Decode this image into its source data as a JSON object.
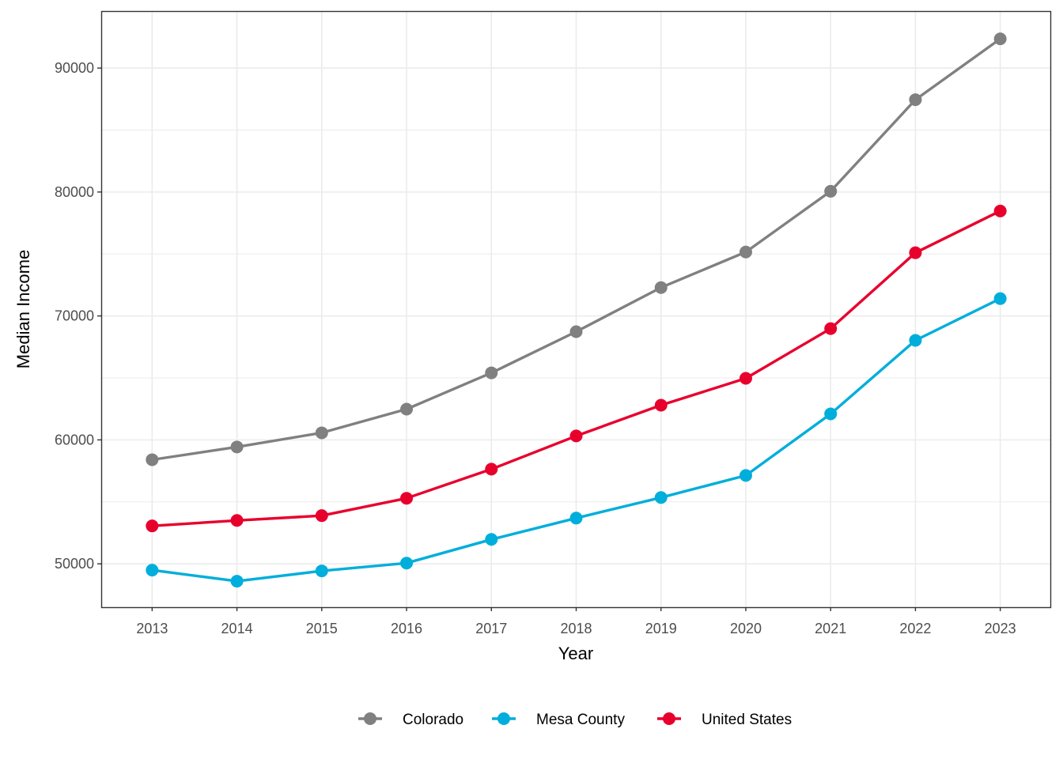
{
  "chart_data": {
    "type": "line",
    "title": "",
    "xlabel": "Year",
    "ylabel": "Median Income",
    "x": [
      2013,
      2014,
      2015,
      2016,
      2017,
      2018,
      2019,
      2020,
      2021,
      2022,
      2023
    ],
    "x_tick_labels": [
      "2013",
      "2014",
      "2015",
      "2016",
      "2017",
      "2018",
      "2019",
      "2020",
      "2021",
      "2022",
      "2023"
    ],
    "y_ticks": [
      50000,
      60000,
      70000,
      80000,
      90000
    ],
    "y_tick_labels": [
      "50000",
      "60000",
      "70000",
      "80000",
      "90000"
    ],
    "xlim": [
      2012.4,
      2023.6
    ],
    "ylim": [
      46500,
      94600
    ],
    "grid": true,
    "legend_position": "bottom",
    "series": [
      {
        "name": "Colorado",
        "color": "#808080",
        "values": [
          58400,
          59430,
          60570,
          62480,
          65410,
          68730,
          72290,
          75160,
          80060,
          87450,
          92360
        ]
      },
      {
        "name": "Mesa County",
        "color": "#00AEDB",
        "values": [
          49490,
          48600,
          49430,
          50060,
          51970,
          53690,
          55350,
          57130,
          62100,
          68030,
          71400
        ]
      },
      {
        "name": "United States",
        "color": "#E8002D",
        "values": [
          53060,
          53500,
          53890,
          55290,
          57640,
          60320,
          62800,
          64970,
          68980,
          75100,
          78470
        ]
      }
    ]
  }
}
